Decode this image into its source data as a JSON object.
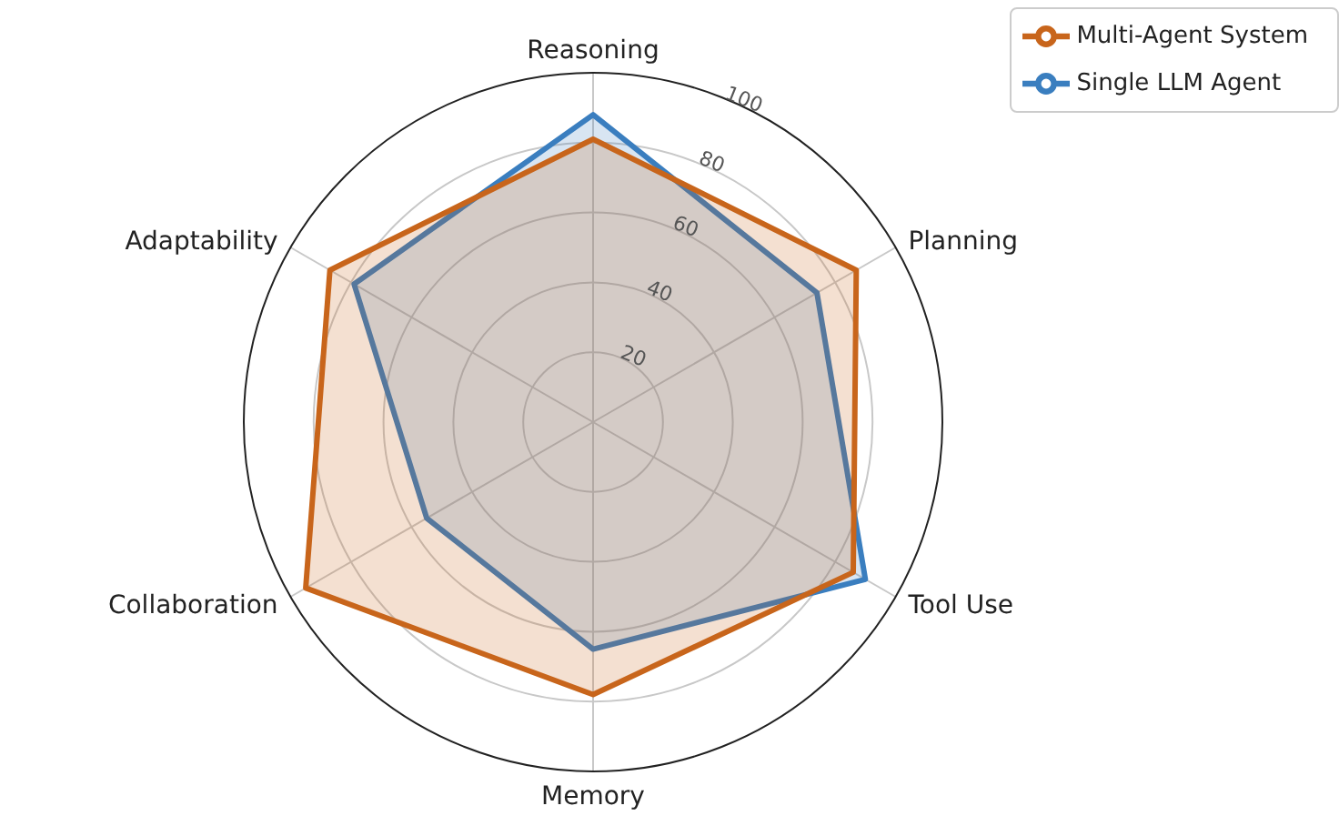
{
  "chart_data": {
    "type": "radar",
    "categories": [
      "Reasoning",
      "Planning",
      "Tool Use",
      "Memory",
      "Collaboration",
      "Adaptability"
    ],
    "series": [
      {
        "name": "Single LLM Agent",
        "color": "#3a7ebf",
        "values": [
          88,
          74,
          90,
          65,
          55,
          79
        ]
      },
      {
        "name": "Multi-Agent System",
        "color": "#c8651b",
        "values": [
          81,
          87,
          86,
          78,
          95,
          87
        ]
      }
    ],
    "ylim": [
      0,
      100
    ],
    "yticks": [
      20,
      40,
      60,
      80,
      100
    ],
    "grid": true,
    "legend": "top right"
  }
}
